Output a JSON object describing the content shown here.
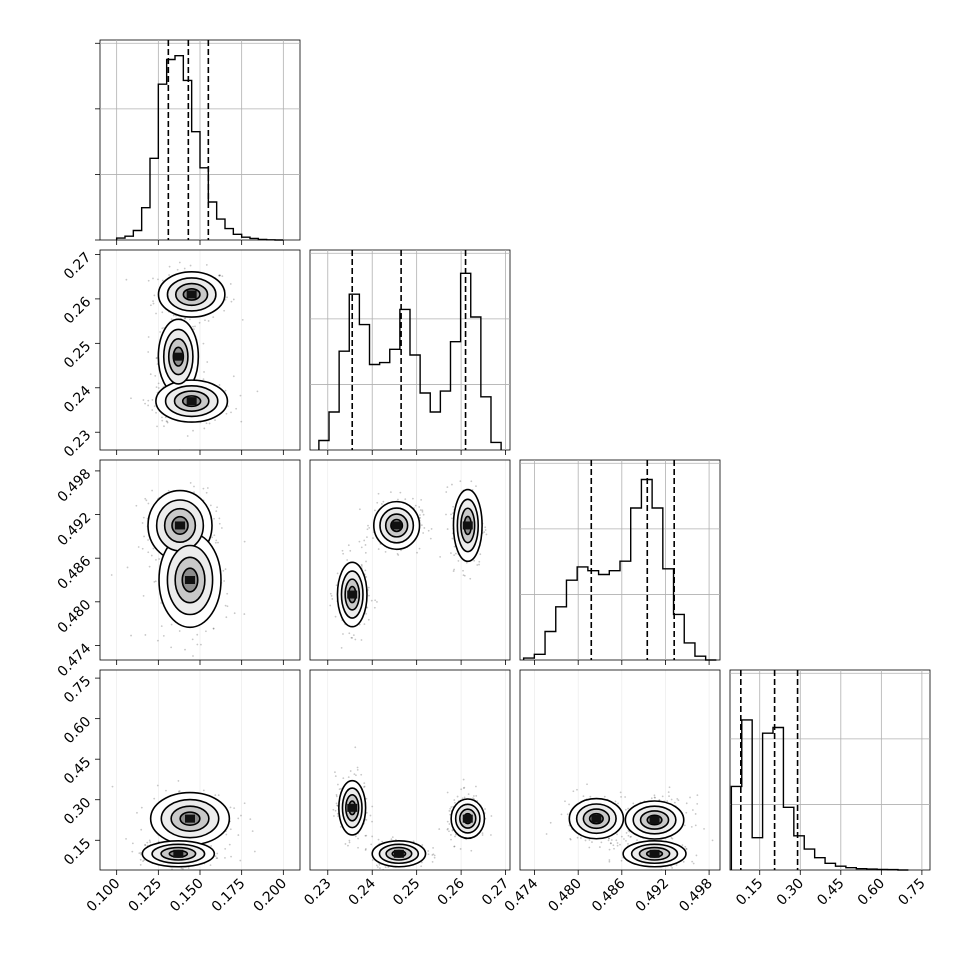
{
  "chart_data": {
    "type": "corner",
    "parameters": [
      {
        "range": [
          0.09,
          0.21
        ],
        "ticks": [
          "0.100",
          "0.125",
          "0.150",
          "0.175",
          "0.200"
        ],
        "quantiles": [
          0.131,
          0.143,
          0.155
        ],
        "hist_counts": [
          0.01,
          0.02,
          0.05,
          0.17,
          0.43,
          0.82,
          0.95,
          0.97,
          0.84,
          0.57,
          0.38,
          0.2,
          0.11,
          0.06,
          0.03,
          0.015,
          0.008,
          0.003,
          0.001,
          0.0
        ],
        "hist_range": [
          0.1,
          0.2
        ]
      },
      {
        "range": [
          0.226,
          0.271
        ],
        "ticks": [
          "0.23",
          "0.24",
          "0.25",
          "0.26",
          "0.27"
        ],
        "quantiles": [
          0.2355,
          0.2465,
          0.261
        ],
        "hist_counts": [
          0.05,
          0.2,
          0.52,
          0.82,
          0.66,
          0.45,
          0.46,
          0.53,
          0.74,
          0.5,
          0.3,
          0.2,
          0.31,
          0.57,
          0.93,
          0.7,
          0.28,
          0.04
        ],
        "hist_range": [
          0.228,
          0.269
        ]
      },
      {
        "range": [
          0.472,
          0.4995
        ],
        "ticks": [
          "0.474",
          "0.480",
          "0.486",
          "0.492",
          "0.498"
        ],
        "quantiles": [
          0.4818,
          0.4895,
          0.4932
        ],
        "hist_counts": [
          0.01,
          0.03,
          0.15,
          0.28,
          0.42,
          0.49,
          0.47,
          0.45,
          0.47,
          0.52,
          0.8,
          0.95,
          0.8,
          0.48,
          0.24,
          0.09,
          0.02,
          0.0
        ],
        "hist_range": [
          0.4725,
          0.499
        ]
      },
      {
        "range": [
          0.04,
          0.78
        ],
        "ticks": [
          "0.15",
          "0.30",
          "0.45",
          "0.60",
          "0.75"
        ],
        "quantiles": [
          0.08,
          0.205,
          0.29
        ],
        "hist_counts": [
          0.44,
          0.79,
          0.17,
          0.72,
          0.75,
          0.33,
          0.18,
          0.11,
          0.065,
          0.035,
          0.02,
          0.012,
          0.007,
          0.005,
          0.003,
          0.002,
          0.0
        ],
        "hist_range": [
          0.045,
          0.7
        ]
      }
    ],
    "blobs": {
      "1-0": [
        {
          "cx": 0.145,
          "cy": 0.261,
          "sx": 0.009,
          "sy": 0.0023,
          "w": 0.85
        },
        {
          "cx": 0.137,
          "cy": 0.247,
          "sx": 0.005,
          "sy": 0.0035,
          "w": 1.0
        },
        {
          "cx": 0.145,
          "cy": 0.237,
          "sx": 0.01,
          "sy": 0.0022,
          "w": 0.8
        }
      ],
      "2-0": [
        {
          "cx": 0.138,
          "cy": 0.4905,
          "sx": 0.008,
          "sy": 0.002,
          "w": 1.0
        },
        {
          "cx": 0.144,
          "cy": 0.483,
          "sx": 0.01,
          "sy": 0.0035,
          "w": 0.6
        }
      ],
      "2-1": [
        {
          "cx": 0.2355,
          "cy": 0.481,
          "sx": 0.0015,
          "sy": 0.002,
          "w": 0.85
        },
        {
          "cx": 0.2455,
          "cy": 0.4905,
          "sx": 0.0022,
          "sy": 0.0014,
          "w": 0.95
        },
        {
          "cx": 0.2615,
          "cy": 0.4905,
          "sx": 0.0015,
          "sy": 0.0023,
          "w": 0.8
        }
      ],
      "3-0": [
        {
          "cx": 0.144,
          "cy": 0.23,
          "sx": 0.011,
          "sy": 0.045,
          "w": 0.8
        },
        {
          "cx": 0.137,
          "cy": 0.1,
          "sx": 0.009,
          "sy": 0.02,
          "w": 1.0
        }
      ],
      "3-1": [
        {
          "cx": 0.2355,
          "cy": 0.27,
          "sx": 0.0015,
          "sy": 0.05,
          "w": 0.7
        },
        {
          "cx": 0.246,
          "cy": 0.1,
          "sx": 0.0025,
          "sy": 0.02,
          "w": 1.0
        },
        {
          "cx": 0.2615,
          "cy": 0.23,
          "sx": 0.0018,
          "sy": 0.035,
          "w": 0.75
        }
      ],
      "3-2": [
        {
          "cx": 0.4825,
          "cy": 0.23,
          "sx": 0.002,
          "sy": 0.04,
          "w": 0.6
        },
        {
          "cx": 0.4905,
          "cy": 0.225,
          "sx": 0.002,
          "sy": 0.035,
          "w": 0.7
        },
        {
          "cx": 0.4905,
          "cy": 0.1,
          "sx": 0.0018,
          "sy": 0.02,
          "w": 1.0
        }
      ]
    },
    "styles": {
      "hist_color": "#000000",
      "grid_color": "#b0b0b0",
      "scatter_color": "#000000"
    }
  }
}
